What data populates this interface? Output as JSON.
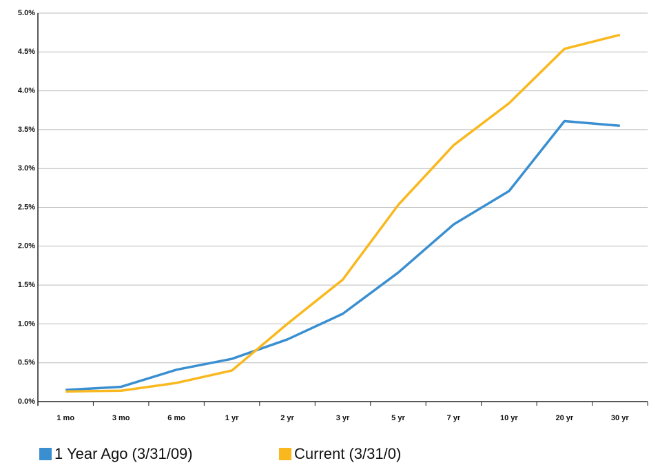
{
  "chart_data": {
    "type": "line",
    "categories": [
      "1 mo",
      "3 mo",
      "6 mo",
      "1 yr",
      "2 yr",
      "3 yr",
      "5 yr",
      "7 yr",
      "10 yr",
      "20 yr",
      "30 yr"
    ],
    "series": [
      {
        "name": "1 Year Ago (3/31/09)",
        "color": "#3a8fd0",
        "values": [
          0.15,
          0.19,
          0.41,
          0.55,
          0.8,
          1.13,
          1.66,
          2.28,
          2.71,
          3.61,
          3.55
        ]
      },
      {
        "name": "Current (3/31/0)",
        "color": "#f9b81e",
        "values": [
          0.13,
          0.14,
          0.24,
          0.4,
          1.0,
          1.57,
          2.53,
          3.3,
          3.84,
          4.54,
          4.72
        ]
      }
    ],
    "ylim": [
      0,
      5
    ],
    "yticks": [
      {
        "value": 0,
        "label": "0.0%"
      },
      {
        "value": 0.5,
        "label": "0.5%"
      },
      {
        "value": 1,
        "label": "1.0%"
      },
      {
        "value": 1.5,
        "label": "1.5%"
      },
      {
        "value": 2,
        "label": "2.0%"
      },
      {
        "value": 2.5,
        "label": "2.5%"
      },
      {
        "value": 3,
        "label": "3.0%"
      },
      {
        "value": 3.5,
        "label": "3.5%"
      },
      {
        "value": 4,
        "label": "4.0%"
      },
      {
        "value": 4.5,
        "label": "4.5%"
      },
      {
        "value": 5,
        "label": "5.0%"
      }
    ],
    "grid": true,
    "legend": "bottom"
  }
}
